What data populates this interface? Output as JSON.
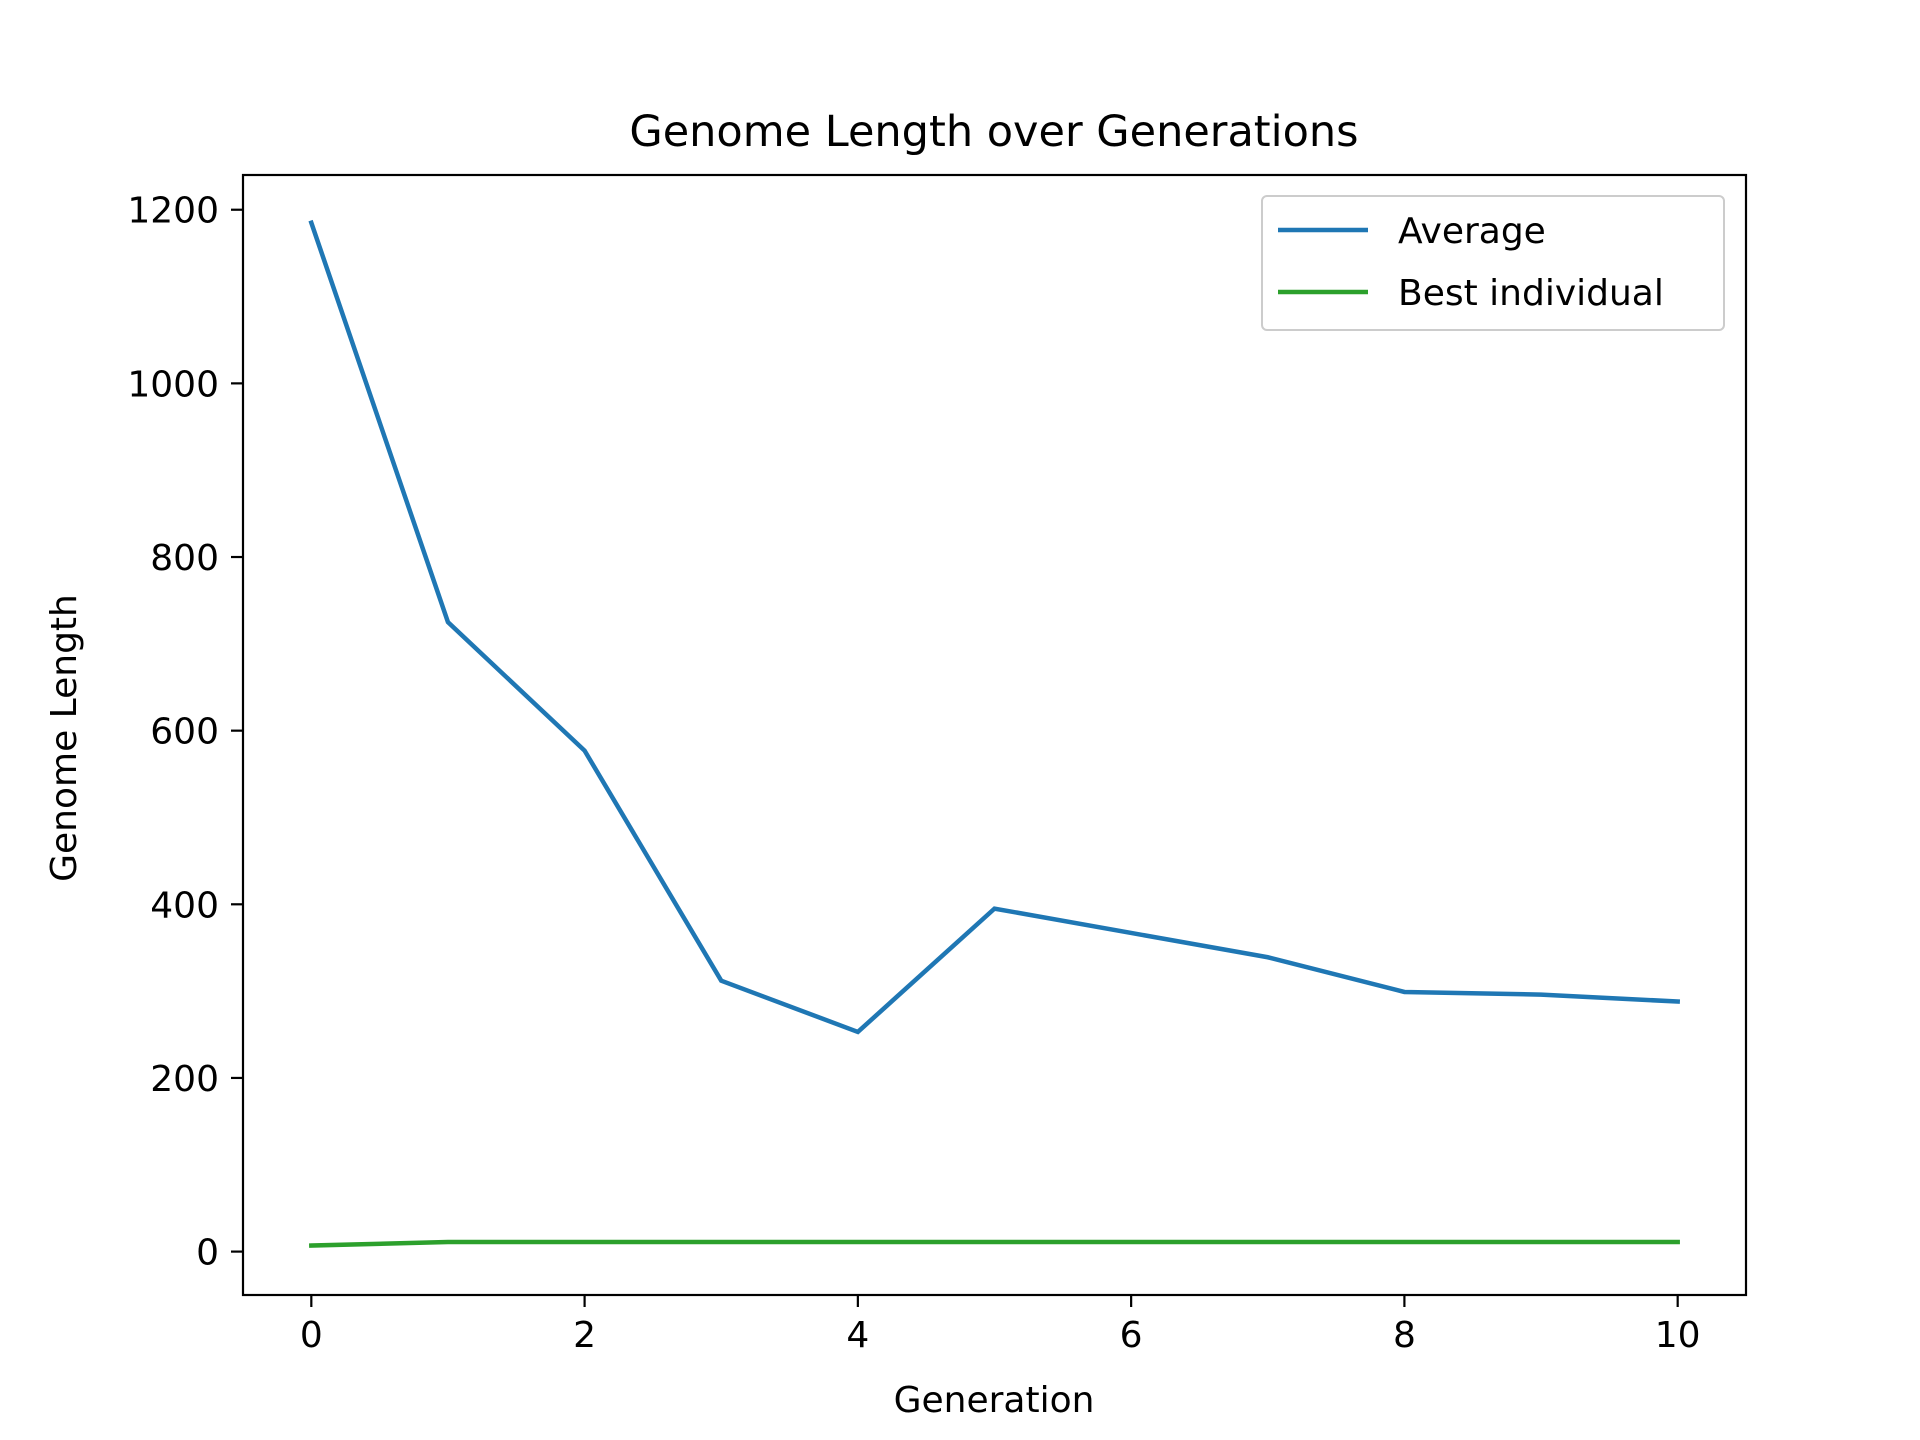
{
  "chart_data": {
    "type": "line",
    "title": "Genome Length over Generations",
    "xlabel": "Generation",
    "ylabel": "Genome Length",
    "xlim": [
      -0.5,
      10.5
    ],
    "ylim": [
      -50,
      1240
    ],
    "xticks": [
      0,
      2,
      4,
      6,
      8,
      10
    ],
    "yticks": [
      0,
      200,
      400,
      600,
      800,
      1000,
      1200
    ],
    "grid": false,
    "legend_position": "top-right",
    "x": [
      0,
      1,
      2,
      3,
      4,
      5,
      6,
      7,
      8,
      9,
      10
    ],
    "series": [
      {
        "name": "Average",
        "color": "#1f77b4",
        "values": [
          1185,
          725,
          577,
          312,
          253,
          395,
          367,
          339,
          299,
          296,
          288
        ]
      },
      {
        "name": "Best individual",
        "color": "#2ca02c",
        "values": [
          7,
          11,
          11,
          11,
          11,
          11,
          11,
          11,
          11,
          11,
          11
        ]
      }
    ]
  }
}
